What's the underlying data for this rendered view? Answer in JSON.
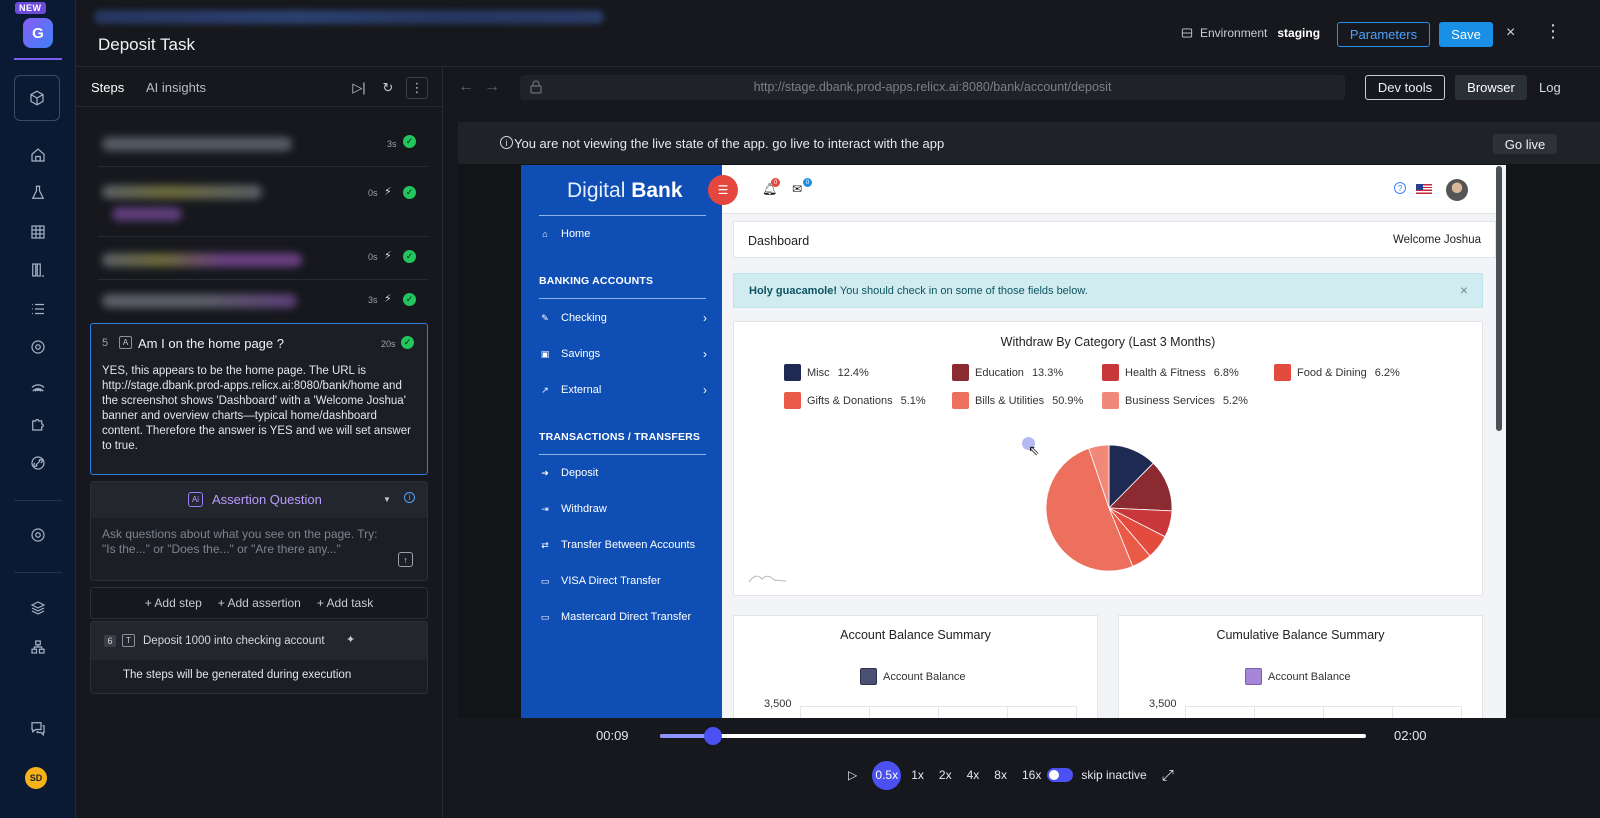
{
  "app": {
    "new_badge": "NEW",
    "logo_glyph": "G",
    "user_initials": "SD"
  },
  "header": {
    "title": "Deposit Task",
    "environment_label": "Environment",
    "environment_value": "staging",
    "parameters_label": "Parameters",
    "save_label": "Save",
    "close_glyph": "×",
    "more_glyph": "⋮"
  },
  "steps_panel": {
    "tabs": [
      "Steps",
      "AI insights"
    ],
    "tool_run": "▷|",
    "tool_refresh": "↻",
    "tool_more": "⋮",
    "blurred_steps": [
      {
        "time": "3s",
        "bolt": false
      },
      {
        "time": "0s",
        "bolt": true
      },
      {
        "time": "0s",
        "bolt": true
      },
      {
        "time": "3s",
        "bolt": true
      }
    ],
    "active_step": {
      "number": "5",
      "type_glyph": "A",
      "title": "Am I on the home page ?",
      "time": "20s",
      "body": "YES, this appears to be the home page. The URL is http://stage.dbank.prod-apps.relicx.ai:8080/bank/home and the screenshot shows 'Dashboard' with a 'Welcome Joshua' banner and overview charts—typical home/dashboard content. Therefore the answer is YES and we will set answer to true."
    },
    "assertion": {
      "ai_glyph": "Ai",
      "title": "Assertion Question",
      "info_glyph": "i",
      "placeholder": "Ask questions about what you see on the page. Try: \"Is the...\" or \"Does the...\" or \"Are there any...\"",
      "send_glyph": "↑"
    },
    "add_actions": [
      "+ Add step",
      "+ Add assertion",
      "+ Add task"
    ],
    "next_step": {
      "number": "6",
      "type_glyph": "T",
      "title": "Deposit 1000 into checking account",
      "spark_glyph": "✦",
      "subtitle": "The steps will be generated during execution"
    }
  },
  "browser": {
    "back_glyph": "←",
    "forward_glyph": "→",
    "url": "http://stage.dbank.prod-apps.relicx.ai:8080/bank/account/deposit",
    "devtools_label": "Dev tools",
    "browser_label": "Browser",
    "log_label": "Log",
    "notice_icon": "i",
    "notice_text": "You are not viewing the live state of the app. go live to interact with the app",
    "go_live_label": "Go live"
  },
  "dbank": {
    "brand_light": "Digital",
    "brand_bold": "Bank",
    "nav": {
      "home": "Home",
      "section_banking": "BANKING ACCOUNTS",
      "checking": "Checking",
      "savings": "Savings",
      "external": "External",
      "section_transactions": "TRANSACTIONS / TRANSFERS",
      "deposit": "Deposit",
      "withdraw": "Withdraw",
      "transfer": "Transfer Between Accounts",
      "visa": "VISA Direct Transfer",
      "mastercard": "Mastercard Direct Transfer"
    },
    "notifications_count": "0",
    "messages_count": "0",
    "help_glyph": "?",
    "dashboard_title": "Dashboard",
    "welcome": "Welcome Joshua",
    "alert_bold": "Holy guacamole!",
    "alert_text": " You should check in on some of those fields below.",
    "alert_close": "×",
    "balance_card_title": "Account Balance Summary",
    "cumulative_card_title": "Cumulative Balance Summary",
    "balance_legend": "Account Balance",
    "cumulative_legend": "Account Balance",
    "balance_color": "#4a5073",
    "cumulative_color": "#a785d8",
    "balance_ytick": "3,500",
    "cumulative_ytick": "3,500"
  },
  "chart_data": {
    "type": "pie",
    "title": "Withdraw By Category (Last 3 Months)",
    "categories": [
      "Misc",
      "Education",
      "Health & Fitness",
      "Food & Dining",
      "Gifts & Donations",
      "Bills & Utilities",
      "Business Services"
    ],
    "values": [
      12.4,
      13.3,
      6.8,
      6.2,
      5.1,
      50.9,
      5.2
    ],
    "labels": [
      "12.4%",
      "13.3%",
      "6.8%",
      "6.2%",
      "5.1%",
      "50.9%",
      "5.2%"
    ],
    "colors": [
      "#1f2a52",
      "#8b2a30",
      "#c8383a",
      "#e24b3e",
      "#ea5b47",
      "#ed6f5d",
      "#f0897a"
    ],
    "legend_position": "top"
  },
  "player": {
    "current_time": "00:09",
    "end_time": "02:00",
    "progress": 0.075,
    "play_glyph": "▷",
    "speeds": [
      "0.5x",
      "1x",
      "2x",
      "4x",
      "8x",
      "16x"
    ],
    "selected_speed": "0.5x",
    "skip_inactive_label": "skip inactive",
    "skip_inactive_on": true,
    "fullscreen_glyph": "⤢"
  }
}
